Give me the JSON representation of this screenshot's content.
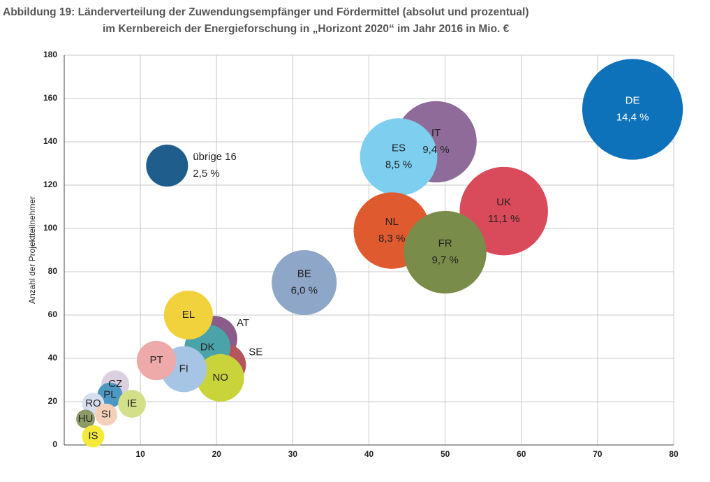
{
  "chart_data": {
    "type": "bubble",
    "title": [
      "Abbildung 19: Länderverteilung der Zuwendungsempfänger und Fördermittel (absolut und prozentual)",
      "im Kernbereich der Energieforschung in „Horizont 2020“ im Jahr 2016 in Mio. €"
    ],
    "y_label": "Anzahl der Projektteilnehmer",
    "labels": [
      "DE",
      "IT",
      "ES",
      "UK",
      "NL",
      "FR",
      "BE",
      "übrige 16",
      "AT",
      "SE",
      "DK",
      "EL",
      "NO",
      "FI",
      "PT",
      "CZ",
      "PL",
      "IE",
      "RO",
      "SI",
      "HU",
      "IS"
    ],
    "x": [
      74.6,
      48.8,
      43.9,
      57.7,
      43.0,
      50.0,
      31.5,
      13.5,
      19.7,
      21.1,
      18.8,
      16.3,
      20.5,
      15.7,
      12.1,
      6.7,
      6.0,
      8.9,
      3.8,
      5.5,
      2.8,
      3.8
    ],
    "values": [
      155,
      140,
      133,
      108,
      99,
      89,
      75,
      129,
      49,
      37,
      45,
      60,
      31,
      35,
      39,
      28,
      23,
      19,
      19,
      14,
      12,
      4
    ],
    "sizes": [
      14.4,
      9.4,
      8.5,
      11.1,
      8.3,
      9.7,
      6.0,
      2.5,
      3.0,
      2.5,
      3.0,
      3.4,
      3.2,
      3.0,
      2.2,
      1.1,
      0.9,
      1.1,
      0.7,
      0.7,
      0.5,
      0.7
    ],
    "size_labels": [
      "14,4 %",
      "9,4 %",
      "8,5 %",
      "11,1 %",
      "8,3 %",
      "9,7 %",
      "6,0 %",
      "2,5 %",
      null,
      null,
      null,
      null,
      null,
      null,
      null,
      null,
      null,
      null,
      null,
      null,
      null,
      null
    ],
    "colors": [
      "#0e72ba",
      "#8e6b99",
      "#7ecef0",
      "#d94a5a",
      "#e05a2f",
      "#7a8c4a",
      "#8ea6c8",
      "#1f5e8c",
      "#8a5c8a",
      "#b5545c",
      "#4aa3a8",
      "#f2d23c",
      "#c9d43a",
      "#a6c4e4",
      "#eeaaa8",
      "#dccfe0",
      "#4e98c4",
      "#d4df8a",
      "#d6dff0",
      "#f5d0b8",
      "#8c9a66",
      "#f5ea3a"
    ],
    "xlim": [
      0,
      80
    ],
    "xticks": [
      10,
      20,
      30,
      40,
      50,
      60,
      70,
      80
    ],
    "ylim": [
      0,
      180
    ],
    "yticks": [
      0,
      20,
      40,
      60,
      80,
      100,
      120,
      140,
      160,
      180
    ],
    "grid": true
  }
}
